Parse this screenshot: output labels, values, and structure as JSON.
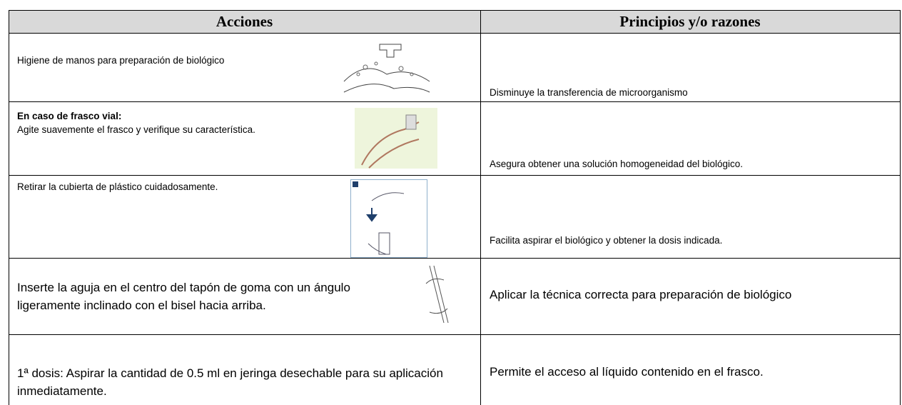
{
  "header": {
    "columns": [
      "Acciones",
      "Principios y/o razones"
    ]
  },
  "table": {
    "rows": [
      {
        "action": "Higiene de manos  para preparación de biológico",
        "principle": "Disminuye la transferencia de microorganismo"
      },
      {
        "action_heading": "En caso de frasco vial:",
        "action": "Agite suavemente  el frasco y  verifique su característica.",
        "principle": "Asegura obtener una solución homogeneidad del biológico."
      },
      {
        "action": "Retirar la cubierta de plástico cuidadosamente.",
        "principle": "Facilita aspirar el biológico y obtener la dosis indicada."
      },
      {
        "action": "Inserte la aguja en el centro del tapón de goma con un ángulo ligeramente inclinado con el bisel hacia arriba.",
        "principle": "Aplicar la técnica correcta para preparación de biológico"
      },
      {
        "action": "1ª dosis: Aspirar la cantidad de 0.5 ml en jeringa desechable para su aplicación inmediatamente.",
        "principle": "Permite el acceso al líquido contenido en el frasco."
      }
    ]
  }
}
